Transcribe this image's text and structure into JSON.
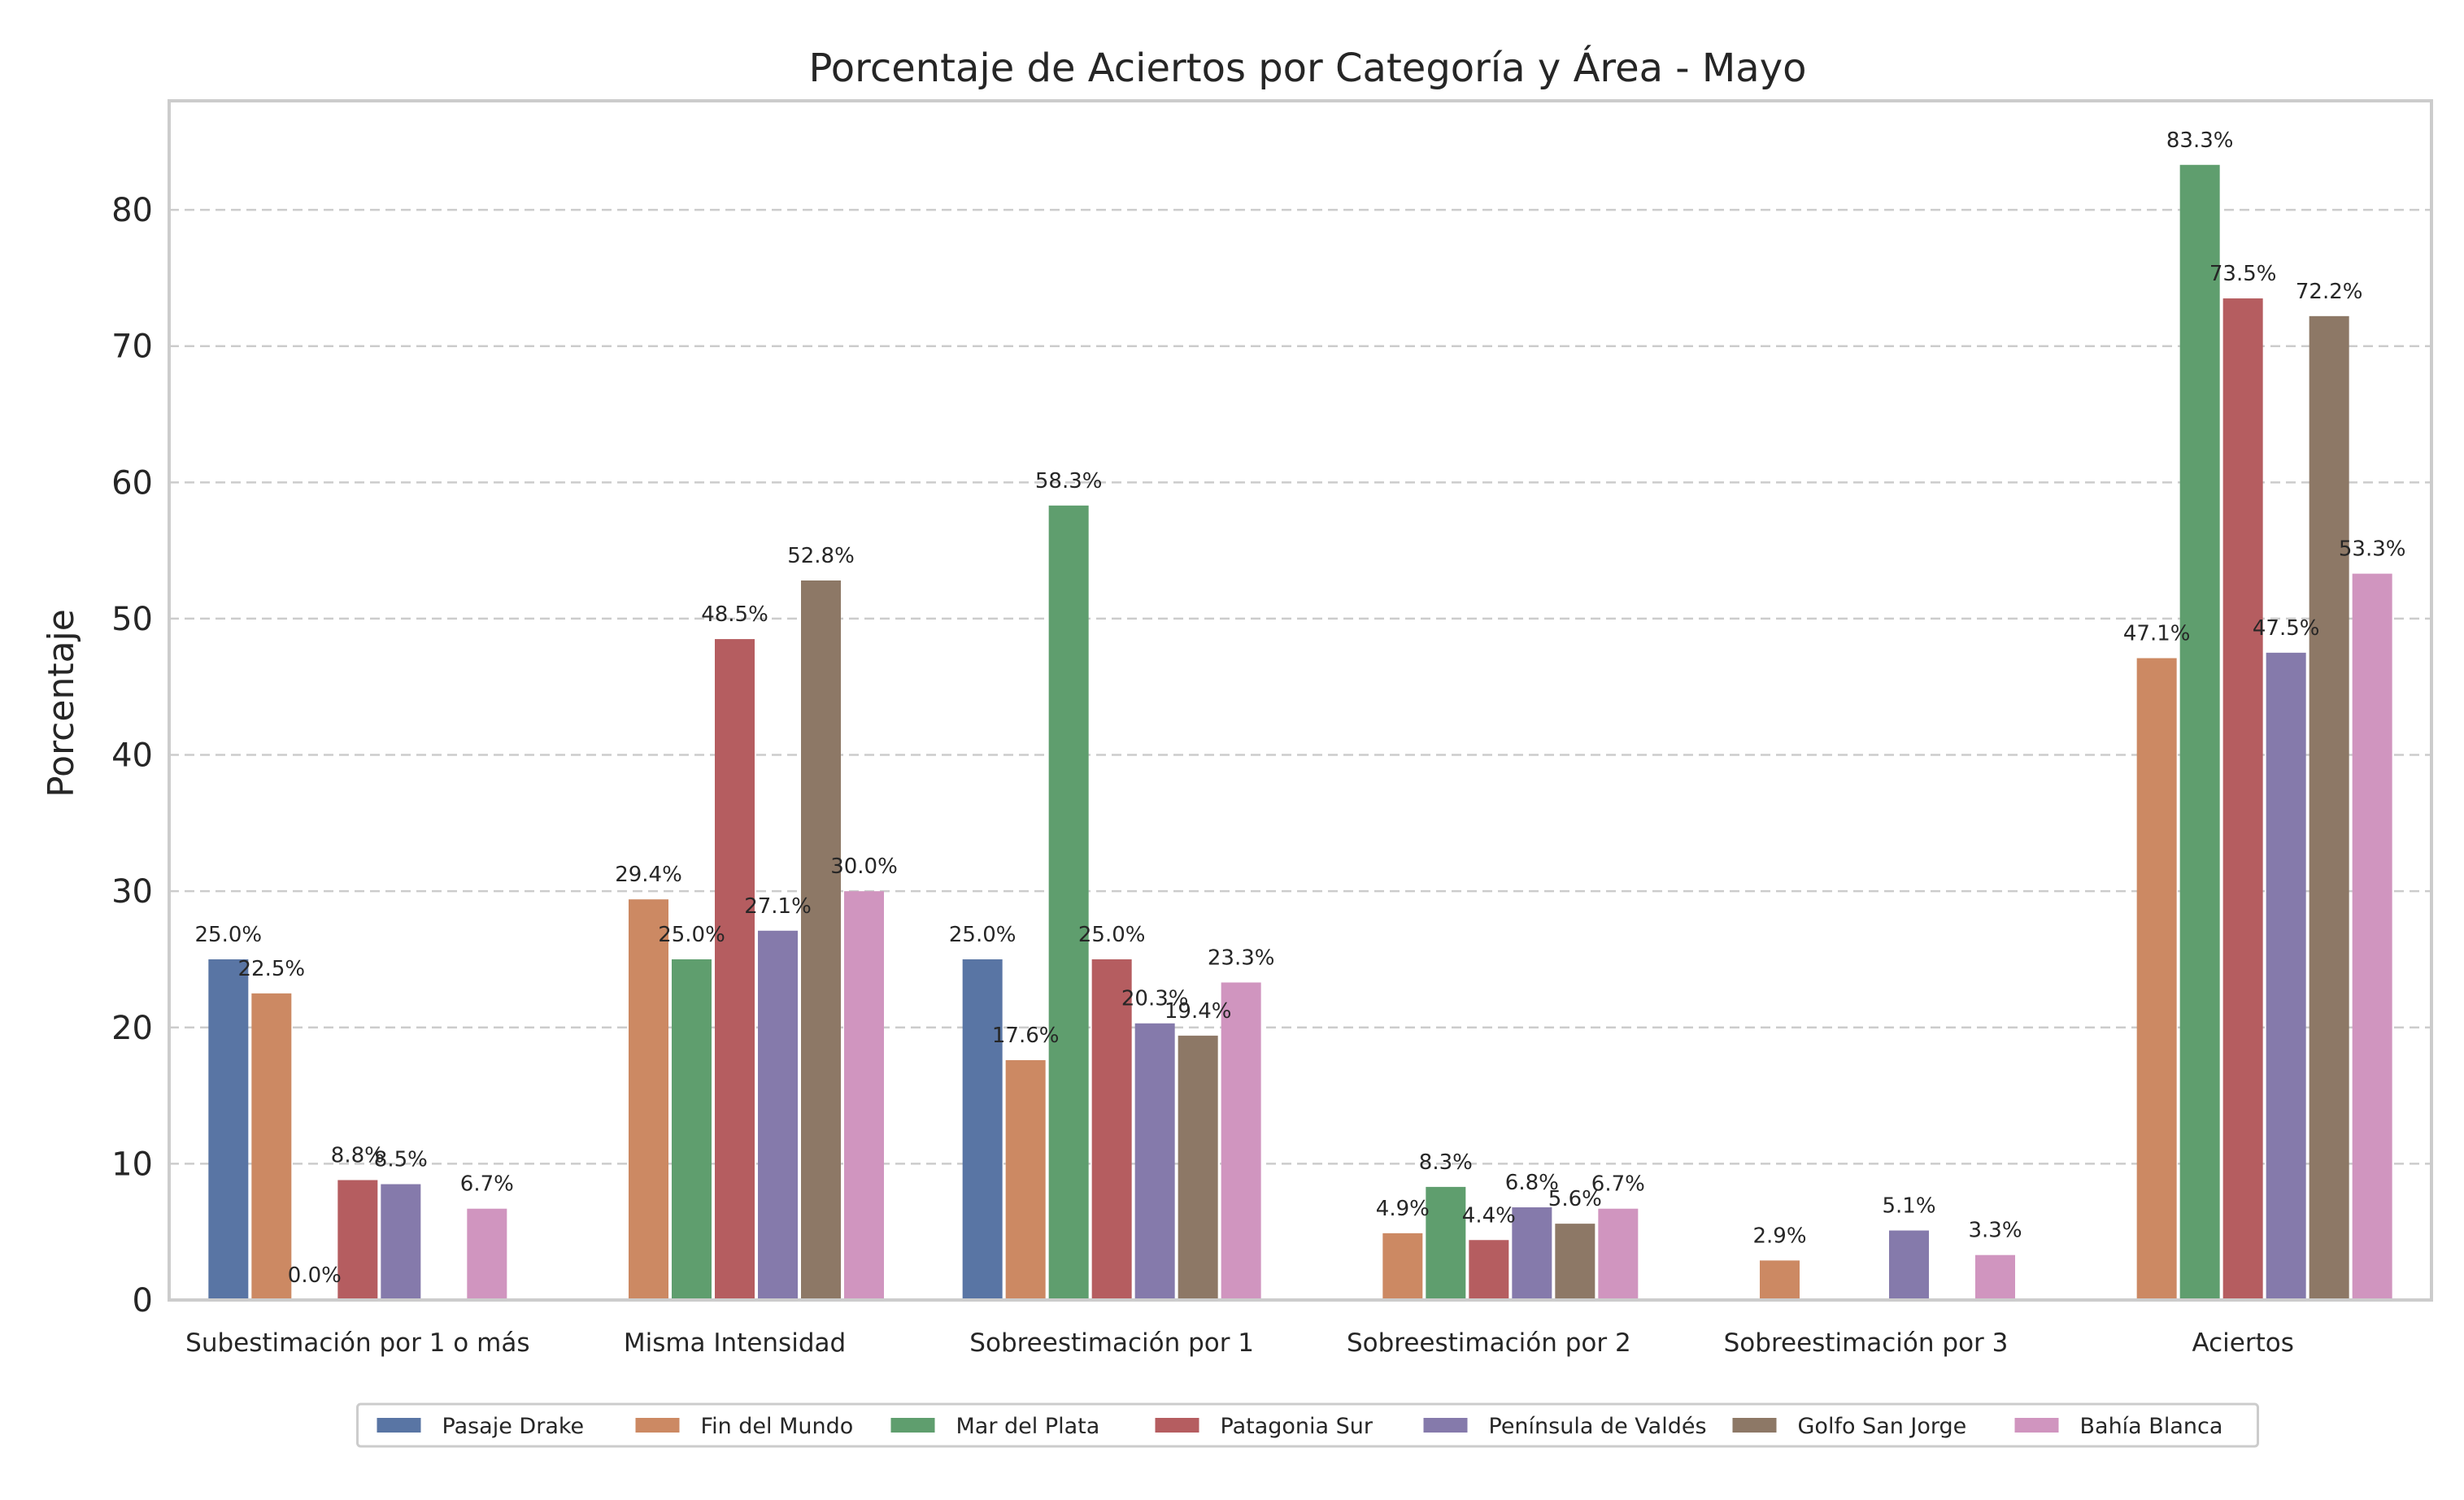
{
  "chart_data": {
    "type": "bar",
    "title": "Porcentaje de Aciertos por Categoría y Área - Mayo",
    "xlabel": "",
    "ylabel": "Porcentaje",
    "ylim": [
      0,
      88
    ],
    "yticks": [
      0,
      10,
      20,
      30,
      40,
      50,
      60,
      70,
      80
    ],
    "grid": "y-dashed",
    "legend_position": "bottom",
    "categories": [
      "Subestimación por 1 o más",
      "Misma Intensidad",
      "Sobreestimación por 1",
      "Sobreestimación por 2",
      "Sobreestimación por 3",
      "Aciertos"
    ],
    "series": [
      {
        "name": "Pasaje Drake",
        "color": "#5975a4",
        "values": [
          25.0,
          null,
          25.0,
          null,
          null,
          null
        ],
        "labels": [
          "25.0%",
          null,
          "25.0%",
          null,
          null,
          null
        ]
      },
      {
        "name": "Fin del Mundo",
        "color": "#cc8963",
        "values": [
          22.5,
          29.4,
          17.6,
          4.9,
          2.9,
          47.1
        ],
        "labels": [
          "22.5%",
          "29.4%",
          "17.6%",
          "4.9%",
          "2.9%",
          "47.1%"
        ]
      },
      {
        "name": "Mar del Plata",
        "color": "#5f9e6e",
        "values": [
          0.0,
          25.0,
          58.3,
          8.3,
          null,
          83.3
        ],
        "labels": [
          "0.0%",
          "25.0%",
          "58.3%",
          "8.3%",
          null,
          "83.3%"
        ]
      },
      {
        "name": "Patagonia Sur",
        "color": "#b55d60",
        "values": [
          8.8,
          48.5,
          25.0,
          4.4,
          null,
          73.5
        ],
        "labels": [
          "8.8%",
          "48.5%",
          "25.0%",
          "4.4%",
          null,
          "73.5%"
        ]
      },
      {
        "name": "Península de Valdés",
        "color": "#857aab",
        "values": [
          8.5,
          27.1,
          20.3,
          6.8,
          5.1,
          47.5
        ],
        "labels": [
          "8.5%",
          "27.1%",
          "20.3%",
          "6.8%",
          "5.1%",
          "47.5%"
        ]
      },
      {
        "name": "Golfo San Jorge",
        "color": "#8d7866",
        "values": [
          null,
          52.8,
          19.4,
          5.6,
          null,
          72.2
        ],
        "labels": [
          null,
          "52.8%",
          "19.4%",
          "5.6%",
          null,
          "72.2%"
        ]
      },
      {
        "name": "Bahía Blanca",
        "color": "#d095bf",
        "values": [
          6.7,
          30.0,
          23.3,
          6.7,
          3.3,
          53.3
        ],
        "labels": [
          "6.7%",
          "30.0%",
          "23.3%",
          "6.7%",
          "3.3%",
          "53.3%"
        ]
      }
    ]
  }
}
